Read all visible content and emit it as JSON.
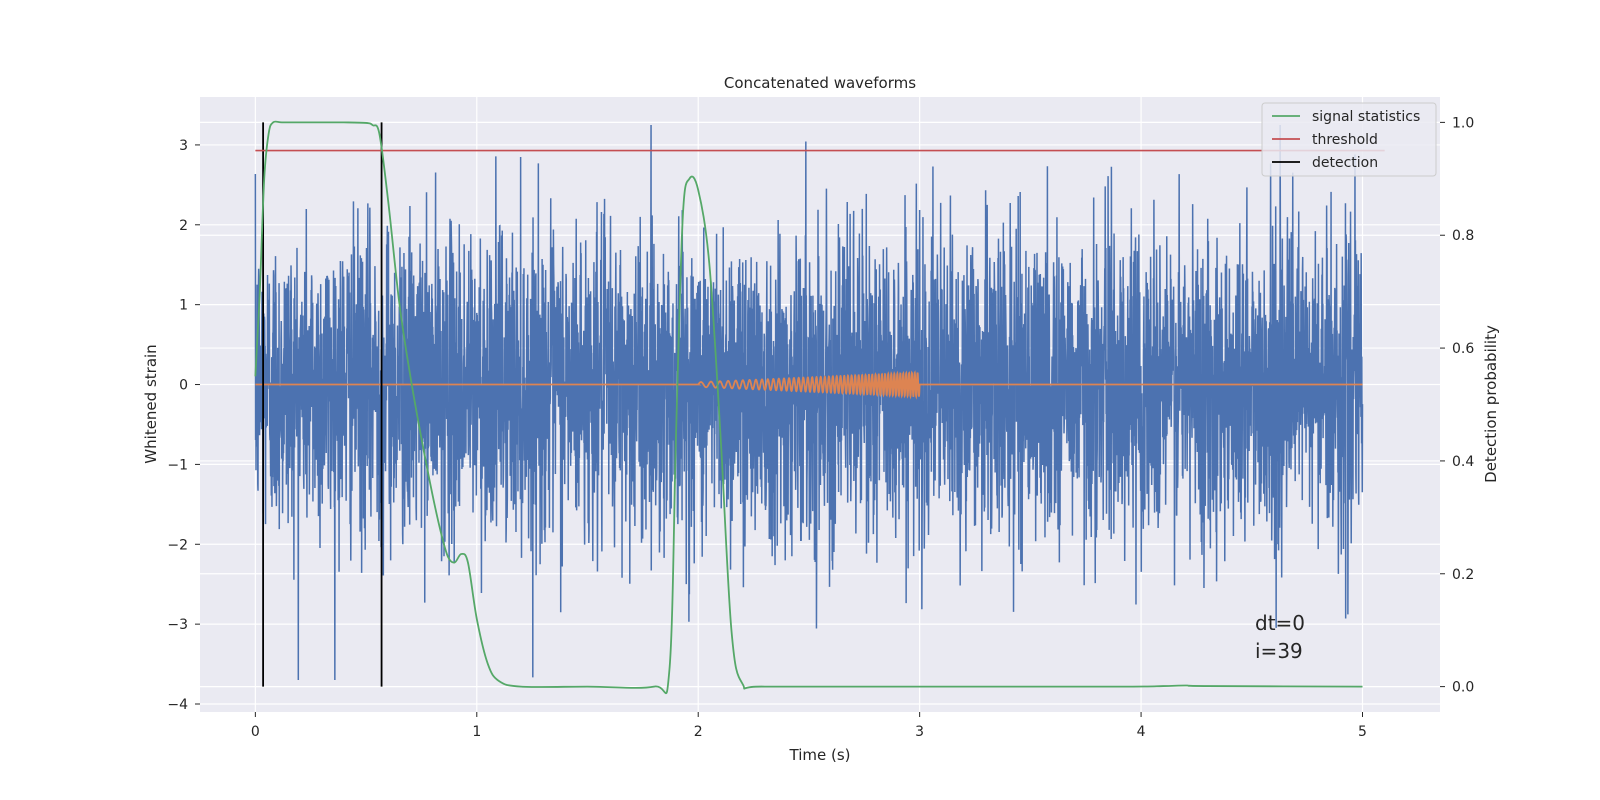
{
  "chart_data": {
    "type": "line",
    "title": "Concatenated waveforms",
    "xlabel": "Time (s)",
    "ylabel": "Whitened strain",
    "ylabel_right": "Detection probability",
    "xlim": [
      -0.25,
      5.35
    ],
    "ylim": [
      -4.1,
      3.6
    ],
    "ylim_right": [
      -0.045,
      1.045
    ],
    "xticks": [
      0,
      1,
      2,
      3,
      4,
      5
    ],
    "yticks": [
      -4,
      -3,
      -2,
      -1,
      0,
      1,
      2,
      3
    ],
    "yticks_right": [
      0.0,
      0.2,
      0.4,
      0.6,
      0.8,
      1.0
    ],
    "grid": true,
    "legend_position": "top-right",
    "colors": {
      "strain": "#4c72b0",
      "template": "#dd8452",
      "signal_statistics": "#55a868",
      "threshold": "#c44e52",
      "detection": "#000000",
      "background": "#eaeaf2"
    },
    "series": [
      {
        "key": "strain",
        "axis": "left",
        "noise_sd": 0.95,
        "x_range": [
          0,
          5
        ]
      },
      {
        "key": "template",
        "axis": "left",
        "baseline": 0,
        "x_range": [
          0,
          5
        ],
        "chirp_range": [
          2.0,
          3.0
        ],
        "chirp_amplitude_start": 0.03,
        "chirp_amplitude_end": 0.15
      },
      {
        "key": "signal_statistics",
        "name": "signal statistics",
        "axis": "right",
        "x": [
          0.0,
          0.02,
          0.04,
          0.06,
          0.08,
          0.12,
          0.2,
          0.3,
          0.4,
          0.5,
          0.53,
          0.56,
          0.6,
          0.65,
          0.7,
          0.75,
          0.8,
          0.84,
          0.87,
          0.9,
          0.93,
          0.96,
          1.0,
          1.05,
          1.1,
          1.2,
          1.5,
          1.8,
          1.87,
          1.9,
          1.93,
          1.96,
          2.0,
          2.05,
          2.1,
          2.15,
          2.2,
          2.3,
          3.0,
          3.9,
          4.1,
          4.2,
          4.3,
          5.0
        ],
        "y": [
          0.55,
          0.7,
          0.9,
          0.98,
          1.0,
          1.0,
          1.0,
          1.0,
          1.0,
          0.999,
          0.995,
          0.98,
          0.86,
          0.68,
          0.55,
          0.44,
          0.34,
          0.27,
          0.23,
          0.22,
          0.235,
          0.22,
          0.12,
          0.04,
          0.01,
          0.0,
          0.0,
          0.0,
          0.03,
          0.45,
          0.83,
          0.9,
          0.88,
          0.75,
          0.45,
          0.1,
          0.005,
          0.0,
          0.0,
          0.0,
          0.001,
          0.002,
          0.001,
          0.0
        ]
      },
      {
        "key": "threshold",
        "name": "threshold",
        "axis": "right",
        "x": [
          0,
          5.1
        ],
        "y": [
          0.95,
          0.95
        ]
      },
      {
        "key": "detection",
        "name": "detection",
        "axis": "right",
        "x_lines": [
          0.035,
          0.57
        ],
        "y_range": [
          0.0,
          1.0
        ]
      }
    ],
    "annotations": [
      "dt=0",
      "i=39"
    ]
  }
}
